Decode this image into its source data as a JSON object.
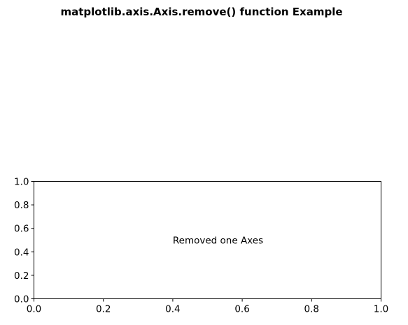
{
  "chart_data": {
    "type": "line",
    "title": "matplotlib.axis.Axis.remove() function Example",
    "xlabel": "",
    "ylabel": "",
    "xlim": [
      0.0,
      1.0
    ],
    "ylim": [
      0.0,
      1.0
    ],
    "x_ticks": [
      "0.0",
      "0.2",
      "0.4",
      "0.6",
      "0.8",
      "1.0"
    ],
    "y_ticks": [
      "0.0",
      "0.2",
      "0.4",
      "0.6",
      "0.8",
      "1.0"
    ],
    "x_tick_values": [
      0.0,
      0.2,
      0.4,
      0.6,
      0.8,
      1.0
    ],
    "y_tick_values": [
      0.0,
      0.2,
      0.4,
      0.6,
      0.8,
      1.0
    ],
    "grid": false,
    "series": [],
    "annotations": [
      {
        "text": "Removed one Axes",
        "x": 0.4,
        "y": 0.5
      }
    ]
  },
  "colors": {
    "axes_edge": "#000000",
    "text": "#000000",
    "background": "#ffffff"
  }
}
